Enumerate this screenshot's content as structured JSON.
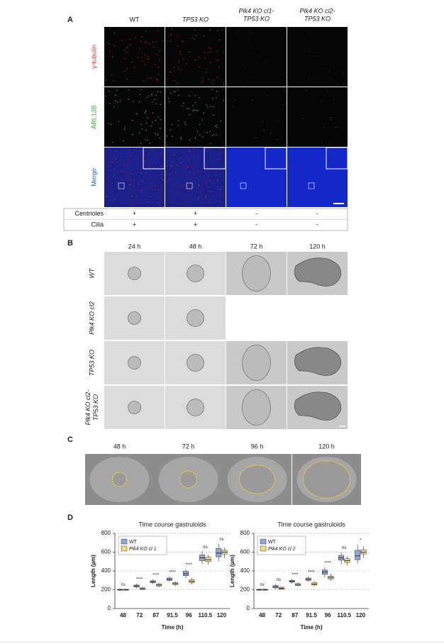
{
  "panels": {
    "a": {
      "label": "A",
      "columns": [
        [
          "WT"
        ],
        [
          "TP53 KO"
        ],
        [
          "Plk4 KO cl1-",
          "TP53 KO"
        ],
        [
          "Plk4 KO cl2-",
          "TP53 KO"
        ]
      ],
      "rows": [
        "γ-tubulin",
        "ARL13B",
        "Merge"
      ],
      "table": [
        {
          "label": "Centrioles",
          "values": [
            "+",
            "+",
            "-",
            "-"
          ]
        },
        {
          "label": "Cilia",
          "values": [
            "+",
            "+",
            "-",
            "-"
          ]
        }
      ]
    },
    "b": {
      "label": "B",
      "columns": [
        "24 h",
        "48 h",
        "72 h",
        "120 h"
      ],
      "rows": [
        [
          "WT"
        ],
        [
          "Plk4 KO cl2"
        ],
        [
          "TP53 KO"
        ],
        [
          "Plk4 KO cl2-",
          "TP53 KO"
        ]
      ]
    },
    "c": {
      "label": "C",
      "columns": [
        "48 h",
        "72 h",
        "96 h",
        "120 h"
      ]
    },
    "d": {
      "label": "D"
    }
  },
  "chart_data": [
    {
      "type": "box",
      "title": "Time course gastruloids",
      "x_label": "Time (h)",
      "y_label": "Length (µm)",
      "categories": [
        "48",
        "72",
        "87",
        "91.5",
        "96",
        "110.5",
        "120"
      ],
      "ylim": [
        0,
        800
      ],
      "yticks": [
        0,
        200,
        400,
        600,
        800
      ],
      "grid": true,
      "legend": "top-left",
      "series": [
        {
          "name": "WT",
          "color": "#8fa8d8",
          "median": [
            200,
            240,
            285,
            310,
            370,
            540,
            590
          ],
          "q1": [
            195,
            230,
            275,
            300,
            350,
            510,
            550
          ],
          "q3": [
            205,
            250,
            295,
            325,
            395,
            570,
            640
          ],
          "min": [
            190,
            215,
            260,
            285,
            320,
            470,
            500
          ],
          "max": [
            210,
            265,
            310,
            340,
            420,
            610,
            690
          ]
        },
        {
          "name": "Plk4 KO cl 1",
          "color": "#f3d98a",
          "median": [
            200,
            210,
            250,
            265,
            290,
            520,
            600
          ],
          "q1": [
            195,
            205,
            240,
            255,
            275,
            500,
            580
          ],
          "q3": [
            205,
            220,
            260,
            275,
            305,
            545,
            620
          ],
          "min": [
            190,
            195,
            225,
            240,
            255,
            470,
            540
          ],
          "max": [
            210,
            230,
            275,
            290,
            325,
            570,
            650
          ]
        }
      ],
      "significance": [
        "ns",
        "****",
        "****",
        "****",
        "****",
        "ns",
        "ns"
      ]
    },
    {
      "type": "box",
      "title": "Time course gastruloids",
      "x_label": "Time (h)",
      "y_label": "Length (µm)",
      "categories": [
        "48",
        "72",
        "87",
        "91.5",
        "96",
        "110.5",
        "120"
      ],
      "ylim": [
        0,
        800
      ],
      "yticks": [
        0,
        200,
        400,
        600,
        800
      ],
      "grid": true,
      "legend": "top-left",
      "series": [
        {
          "name": "WT",
          "color": "#8fa8d8",
          "median": [
            200,
            230,
            290,
            310,
            390,
            540,
            560
          ],
          "q1": [
            195,
            220,
            280,
            300,
            365,
            515,
            520
          ],
          "q3": [
            205,
            245,
            300,
            325,
            410,
            565,
            620
          ],
          "min": [
            190,
            205,
            265,
            285,
            330,
            470,
            480
          ],
          "max": [
            210,
            260,
            315,
            340,
            440,
            600,
            680
          ]
        },
        {
          "name": "Plk4 KO cl 2",
          "color": "#f3d98a",
          "median": [
            200,
            215,
            255,
            260,
            330,
            510,
            600
          ],
          "q1": [
            195,
            205,
            245,
            250,
            315,
            490,
            580
          ],
          "q3": [
            205,
            225,
            265,
            275,
            345,
            530,
            625
          ],
          "min": [
            190,
            195,
            230,
            235,
            295,
            460,
            540
          ],
          "max": [
            210,
            240,
            280,
            290,
            370,
            560,
            660
          ]
        }
      ],
      "significance": [
        "ns",
        "ns",
        "****",
        "****",
        "****",
        "ns",
        "*"
      ]
    }
  ]
}
